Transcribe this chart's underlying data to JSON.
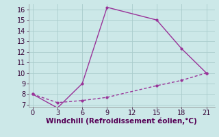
{
  "line1_x": [
    0,
    3,
    6,
    9,
    15,
    18,
    21
  ],
  "line1_y": [
    8,
    6.7,
    9,
    16.2,
    15,
    12.3,
    10
  ],
  "line2_x": [
    0,
    3,
    6,
    9,
    15,
    18,
    21
  ],
  "line2_y": [
    8,
    7.2,
    7.4,
    7.7,
    8.8,
    9.3,
    10
  ],
  "line_color": "#993399",
  "xlabel": "Windchill (Refroidissement éolien,°C)",
  "xlim": [
    -0.5,
    22
  ],
  "ylim": [
    6.8,
    16.5
  ],
  "xticks": [
    0,
    3,
    6,
    9,
    12,
    15,
    18,
    21
  ],
  "yticks": [
    7,
    8,
    9,
    10,
    11,
    12,
    13,
    14,
    15,
    16
  ],
  "bg_color": "#cce8e8",
  "grid_color": "#aacccc",
  "xlabel_fontsize": 7.5,
  "tick_fontsize": 7
}
